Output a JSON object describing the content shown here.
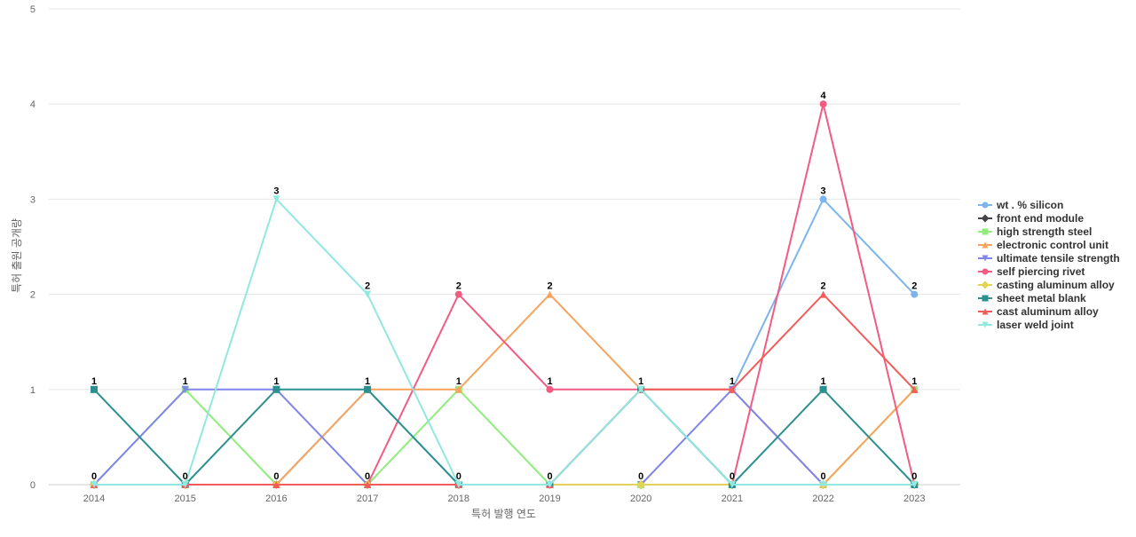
{
  "chart_data": {
    "type": "line",
    "title": "",
    "xlabel": "특허 발행 연도",
    "ylabel": "특허 출원 공개량",
    "ylim": [
      0,
      5
    ],
    "yticks": [
      0,
      1,
      2,
      3,
      4,
      5
    ],
    "grid": true,
    "legend_position": "right",
    "categories": [
      "2014",
      "2015",
      "2016",
      "2017",
      "2018",
      "2019",
      "2020",
      "2021",
      "2022",
      "2023"
    ],
    "series": [
      {
        "name": "wt . % silicon",
        "color": "#7cb5ec",
        "marker": "circle",
        "values": [
          0,
          0,
          0,
          1,
          0,
          0,
          1,
          1,
          3,
          2
        ]
      },
      {
        "name": "front end module",
        "color": "#434348",
        "marker": "diamond",
        "values": [
          0,
          0,
          0,
          0,
          0,
          0,
          0,
          0,
          0,
          0
        ]
      },
      {
        "name": "high strength steel",
        "color": "#90ed7d",
        "marker": "square",
        "values": [
          0,
          1,
          0,
          0,
          1,
          0,
          0,
          0,
          0,
          1
        ]
      },
      {
        "name": "electronic control unit",
        "color": "#f7a35c",
        "marker": "triangle",
        "values": [
          0,
          0,
          0,
          1,
          1,
          2,
          1,
          1,
          0,
          1
        ]
      },
      {
        "name": "ultimate tensile strength",
        "color": "#8085e9",
        "marker": "triangle-down",
        "values": [
          0,
          1,
          1,
          0,
          0,
          0,
          0,
          1,
          0,
          0
        ]
      },
      {
        "name": "self piercing rivet",
        "color": "#f15c80",
        "marker": "circle",
        "values": [
          0,
          0,
          0,
          0,
          2,
          1,
          1,
          0,
          4,
          0
        ]
      },
      {
        "name": "casting aluminum alloy",
        "color": "#e4d354",
        "marker": "diamond",
        "values": [
          0,
          0,
          0,
          0,
          0,
          0,
          0,
          0,
          0,
          0
        ]
      },
      {
        "name": "sheet metal blank",
        "color": "#2b908f",
        "marker": "square",
        "values": [
          1,
          0,
          1,
          1,
          0,
          0,
          1,
          0,
          1,
          0
        ]
      },
      {
        "name": "cast aluminum alloy",
        "color": "#f45b5b",
        "marker": "triangle",
        "values": [
          0,
          0,
          0,
          0,
          0,
          0,
          1,
          1,
          2,
          1
        ]
      },
      {
        "name": "laser weld joint",
        "color": "#91e8e1",
        "marker": "triangle-down",
        "values": [
          0,
          0,
          3,
          2,
          0,
          0,
          1,
          0,
          0,
          0
        ]
      }
    ],
    "data_labels": [
      {
        "category": "2014",
        "value": 1
      },
      {
        "category": "2014",
        "value": 0
      },
      {
        "category": "2015",
        "value": 1
      },
      {
        "category": "2015",
        "value": 0
      },
      {
        "category": "2016",
        "value": 3
      },
      {
        "category": "2016",
        "value": 1
      },
      {
        "category": "2016",
        "value": 0
      },
      {
        "category": "2017",
        "value": 2
      },
      {
        "category": "2017",
        "value": 1
      },
      {
        "category": "2017",
        "value": 0
      },
      {
        "category": "2018",
        "value": 2
      },
      {
        "category": "2018",
        "value": 1
      },
      {
        "category": "2018",
        "value": 0
      },
      {
        "category": "2019",
        "value": 2
      },
      {
        "category": "2019",
        "value": 1
      },
      {
        "category": "2019",
        "value": 0
      },
      {
        "category": "2020",
        "value": 1
      },
      {
        "category": "2020",
        "value": 0
      },
      {
        "category": "2021",
        "value": 1
      },
      {
        "category": "2021",
        "value": 0
      },
      {
        "category": "2022",
        "value": 4
      },
      {
        "category": "2022",
        "value": 3
      },
      {
        "category": "2022",
        "value": 2
      },
      {
        "category": "2022",
        "value": 1
      },
      {
        "category": "2022",
        "value": 0
      },
      {
        "category": "2023",
        "value": 2
      },
      {
        "category": "2023",
        "value": 1
      },
      {
        "category": "2023",
        "value": 0
      }
    ]
  }
}
